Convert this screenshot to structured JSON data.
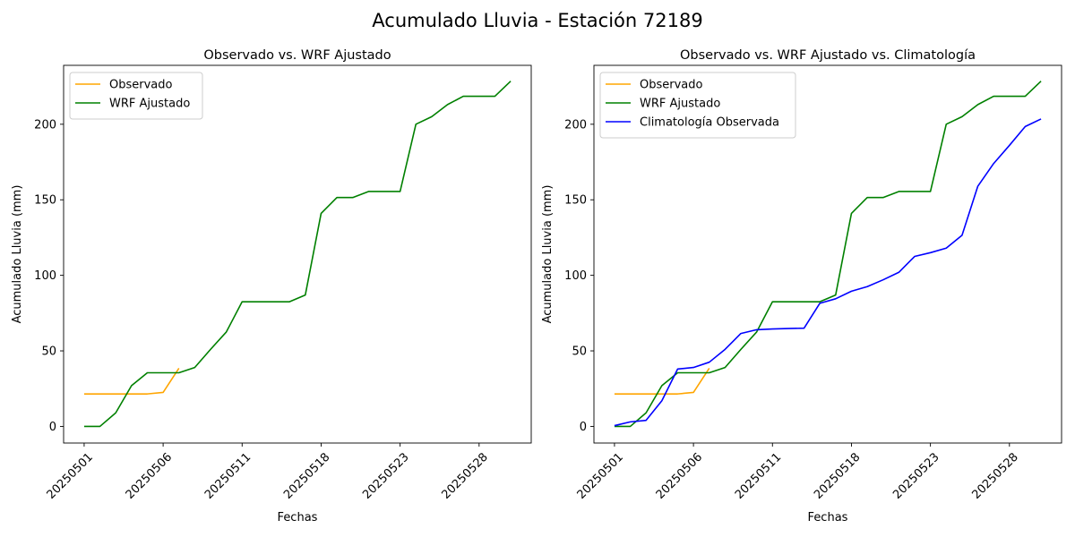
{
  "figure": {
    "suptitle": "Acumulado Lluvia - Estación 72189"
  },
  "colors": {
    "observado": "#FFA500",
    "wrf": "#008000",
    "clima": "#0000FF"
  },
  "chart_data": [
    {
      "type": "line",
      "title": "Observado vs. WRF Ajustado",
      "xlabel": "Fechas",
      "ylabel": "Acumulado Lluvia (mm)",
      "x_tick_labels": [
        "20250501",
        "20250506",
        "20250511",
        "20250518",
        "20250523",
        "20250528"
      ],
      "y_ticks": [
        0,
        50,
        100,
        150,
        200
      ],
      "ylim": [
        -11,
        239
      ],
      "legend_location": "top-left",
      "grid": false,
      "series": [
        {
          "name": "Observado",
          "color": "#FFA500",
          "points": [
            [
              0,
              21.5
            ],
            [
              1,
              21.5
            ],
            [
              2,
              21.5
            ],
            [
              3,
              21.5
            ],
            [
              4,
              21.5
            ],
            [
              5,
              22.5
            ],
            [
              6,
              38.5
            ]
          ]
        },
        {
          "name": "WRF Ajustado",
          "color": "#008000",
          "points": [
            [
              0,
              0
            ],
            [
              1,
              0
            ],
            [
              2,
              9
            ],
            [
              3,
              27
            ],
            [
              4,
              35.5
            ],
            [
              5,
              35.5
            ],
            [
              6,
              35.5
            ],
            [
              7,
              39
            ],
            [
              8,
              51
            ],
            [
              9,
              62.5
            ],
            [
              10,
              82.5
            ],
            [
              11,
              82.5
            ],
            [
              12,
              82.5
            ],
            [
              13,
              82.5
            ],
            [
              14,
              87
            ],
            [
              15,
              141
            ],
            [
              16,
              151.5
            ],
            [
              17,
              151.5
            ],
            [
              18,
              155.5
            ],
            [
              19,
              155.5
            ],
            [
              20,
              155.5
            ],
            [
              21,
              200
            ],
            [
              22,
              205
            ],
            [
              23,
              213
            ],
            [
              24,
              218.5
            ],
            [
              25,
              218.5
            ],
            [
              26,
              218.5
            ],
            [
              27,
              228.5
            ]
          ]
        }
      ]
    },
    {
      "type": "line",
      "title": "Observado vs. WRF Ajustado vs. Climatología",
      "xlabel": "Fechas",
      "ylabel": "Acumulado Lluvia (mm)",
      "x_tick_labels": [
        "20250501",
        "20250506",
        "20250511",
        "20250518",
        "20250523",
        "20250528"
      ],
      "y_ticks": [
        0,
        50,
        100,
        150,
        200
      ],
      "ylim": [
        -11,
        239
      ],
      "legend_location": "top-left",
      "grid": false,
      "series": [
        {
          "name": "Observado",
          "color": "#FFA500",
          "points": [
            [
              0,
              21.5
            ],
            [
              1,
              21.5
            ],
            [
              2,
              21.5
            ],
            [
              3,
              21.5
            ],
            [
              4,
              21.5
            ],
            [
              5,
              22.5
            ],
            [
              6,
              38.5
            ]
          ]
        },
        {
          "name": "WRF Ajustado",
          "color": "#008000",
          "points": [
            [
              0,
              0
            ],
            [
              1,
              0
            ],
            [
              2,
              9
            ],
            [
              3,
              27
            ],
            [
              4,
              35.5
            ],
            [
              5,
              35.5
            ],
            [
              6,
              35.5
            ],
            [
              7,
              39
            ],
            [
              8,
              51
            ],
            [
              9,
              62.5
            ],
            [
              10,
              82.5
            ],
            [
              11,
              82.5
            ],
            [
              12,
              82.5
            ],
            [
              13,
              82.5
            ],
            [
              14,
              87
            ],
            [
              15,
              141
            ],
            [
              16,
              151.5
            ],
            [
              17,
              151.5
            ],
            [
              18,
              155.5
            ],
            [
              19,
              155.5
            ],
            [
              20,
              155.5
            ],
            [
              21,
              200
            ],
            [
              22,
              205
            ],
            [
              23,
              213
            ],
            [
              24,
              218.5
            ],
            [
              25,
              218.5
            ],
            [
              26,
              218.5
            ],
            [
              27,
              228.5
            ]
          ]
        },
        {
          "name": "Climatología Observada",
          "color": "#0000FF",
          "points": [
            [
              0,
              0.5
            ],
            [
              1,
              3
            ],
            [
              2,
              4
            ],
            [
              3,
              17
            ],
            [
              4,
              38
            ],
            [
              5,
              39
            ],
            [
              6,
              42.5
            ],
            [
              7,
              51
            ],
            [
              8,
              61.5
            ],
            [
              9,
              64
            ],
            [
              10,
              64.5
            ],
            [
              11,
              64.8
            ],
            [
              12,
              65
            ],
            [
              13,
              81.5
            ],
            [
              14,
              84.5
            ],
            [
              15,
              89.5
            ],
            [
              16,
              92.5
            ],
            [
              17,
              97
            ],
            [
              18,
              102
            ],
            [
              19,
              112.5
            ],
            [
              20,
              115
            ],
            [
              21,
              118
            ],
            [
              22,
              126.5
            ],
            [
              23,
              159
            ],
            [
              24,
              174
            ],
            [
              25,
              186
            ],
            [
              26,
              198.5
            ],
            [
              27,
              203.5
            ]
          ]
        }
      ]
    }
  ]
}
